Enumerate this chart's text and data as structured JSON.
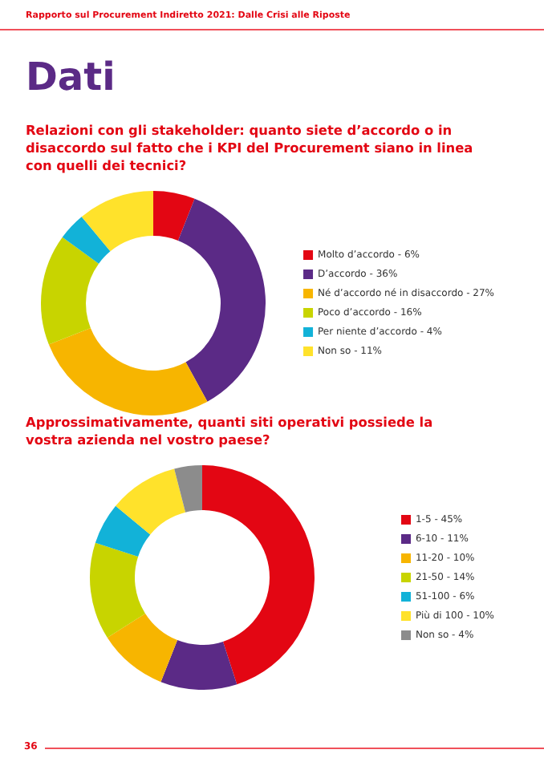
{
  "chart_data": [
    {
      "type": "donut",
      "title": "Relazioni con gli stakeholder: quanto siete d’accordo o in disaccordo sul fatto che i KPI del Procurement siano in linea con quelli dei tecnici?",
      "annotations": [
        "Rapporto sul Procurement Indiretto 2021: Dalle Crisi alle Riposte",
        "Dati"
      ],
      "legend": "right",
      "categories": [
        "Molto d’accordo - 6%",
        "D’accordo - 36%",
        "Né d’accordo né in disaccordo - 27%",
        "Poco d’accordo - 16%",
        "Per niente d’accordo - 4%",
        "Non so - 11%"
      ],
      "values": [
        6,
        36,
        27,
        16,
        4,
        11
      ],
      "colors": [
        "#e30613",
        "#5b2a86",
        "#f7b500",
        "#c8d400",
        "#12b2d8",
        "#ffe22b"
      ]
    },
    {
      "type": "donut",
      "title": "Approssimativamente, quanti siti operativi possiede la vostra azienda nel vostro paese?",
      "annotations": [
        "36"
      ],
      "legend": "right",
      "categories": [
        "1-5 - 45%",
        "6-10 - 11%",
        "11-20 - 10%",
        "21-50 - 14%",
        "51-100 - 6%",
        "Più di 100 - 10%",
        "Non so - 4%"
      ],
      "values": [
        45,
        11,
        10,
        14,
        6,
        10,
        4
      ],
      "colors": [
        "#e30613",
        "#5b2a86",
        "#f7b500",
        "#c8d400",
        "#12b2d8",
        "#ffe22b",
        "#8c8c8c"
      ]
    }
  ]
}
